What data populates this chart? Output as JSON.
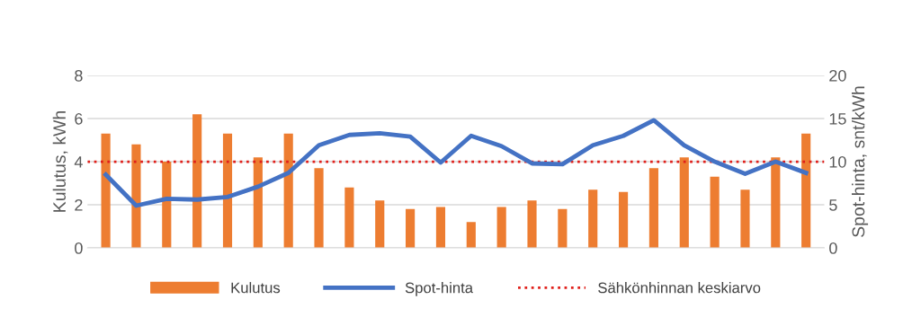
{
  "chart_data": {
    "type": "bar",
    "ylabel": "Kulutus, kWh",
    "y2label": "Spot-hinta, snt/kWh",
    "categories": [
      null,
      null,
      null,
      null,
      null,
      null,
      null,
      null,
      null,
      null,
      null,
      null,
      null,
      null,
      null,
      null,
      null,
      null,
      null,
      null,
      null,
      null,
      null,
      null
    ],
    "series": [
      {
        "name": "Kulutus",
        "color": "#ed7d31",
        "values": [
          5.3,
          4.8,
          4.0,
          6.2,
          5.3,
          4.2,
          5.3,
          3.7,
          2.8,
          2.2,
          1.8,
          1.9,
          1.2,
          1.9,
          2.2,
          1.8,
          2.7,
          2.6,
          3.7,
          4.2,
          3.3,
          2.7,
          4.2,
          5.3
        ]
      },
      {
        "name": "Spot-hinta",
        "type": "line",
        "axis": "y2",
        "color": "#4472c4",
        "values": [
          8.5,
          4.9,
          5.7,
          5.6,
          5.9,
          7.1,
          8.7,
          11.9,
          13.1,
          13.3,
          12.9,
          9.9,
          13.0,
          11.8,
          9.8,
          9.7,
          11.9,
          13.0,
          14.8,
          11.9,
          10.0,
          8.6,
          10.0,
          8.7
        ]
      }
    ],
    "ref_lines": [
      {
        "axis": "y",
        "value": 4,
        "label": "Sähkönhinnan keskiarvo",
        "color": "#e0201b",
        "line_style": "dotted"
      }
    ],
    "ylim": [
      0,
      8
    ],
    "yticks": [
      0,
      2,
      4,
      6,
      8
    ],
    "y2lim": [
      0,
      20
    ],
    "y2ticks": [
      0,
      5,
      10,
      15,
      20
    ],
    "grid": "y",
    "legend": "bottom",
    "marker": "none",
    "line_style": "solid"
  }
}
